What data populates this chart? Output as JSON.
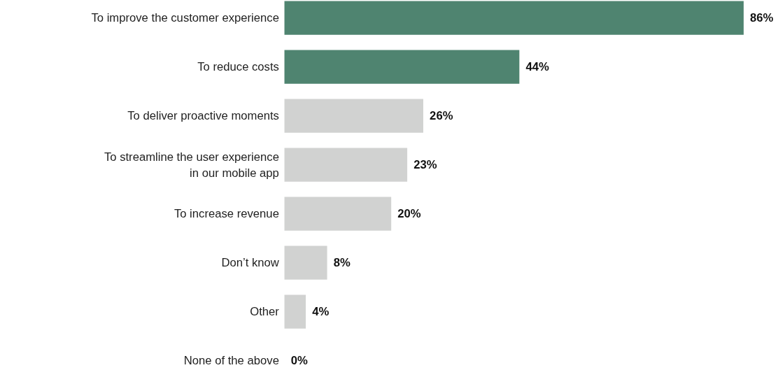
{
  "chart_data": {
    "type": "bar",
    "orientation": "horizontal",
    "categories": [
      "To improve the customer experience",
      "To reduce costs",
      "To deliver proactive moments",
      "To streamline the user experience in our mobile app",
      "To increase revenue",
      "Don’t know",
      "Other",
      "None of the above"
    ],
    "values": [
      86,
      44,
      26,
      23,
      20,
      8,
      4,
      0
    ],
    "colors": [
      "#4f8470",
      "#4f8470",
      "#d1d2d1",
      "#d1d2d1",
      "#d1d2d1",
      "#d1d2d1",
      "#d1d2d1",
      "#d1d2d1"
    ],
    "value_labels": [
      "86%",
      "44%",
      "26%",
      "23%",
      "20%",
      "8%",
      "4%",
      "0%"
    ],
    "grid": false
  }
}
